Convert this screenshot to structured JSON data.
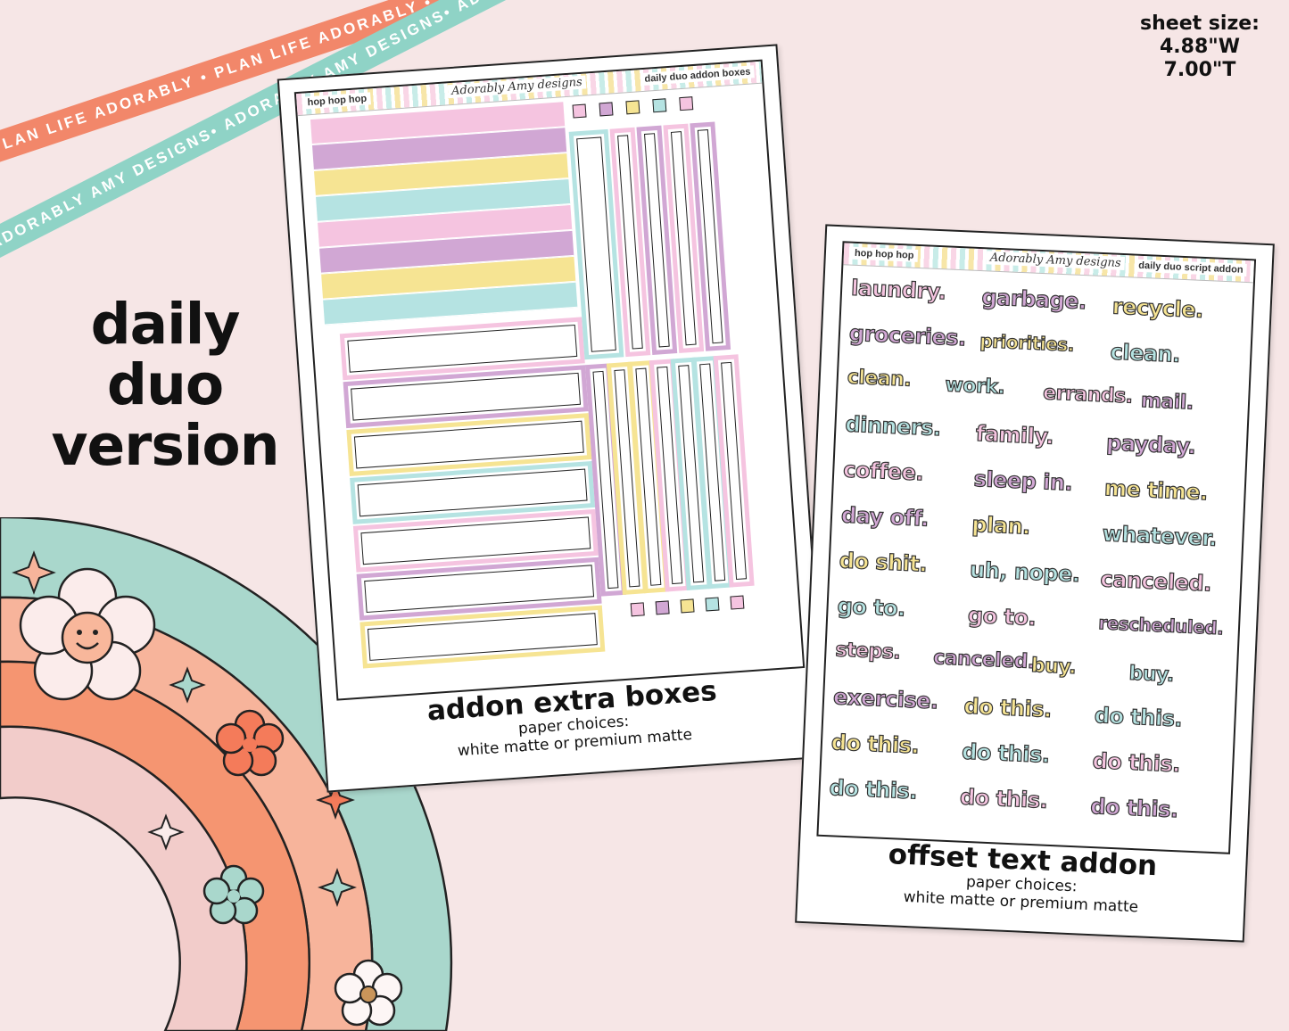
{
  "ribbons": {
    "top_text": "PLAN LIFE ADORABLY • PLAN LIFE ADORABLY • PLAN LIFE ADORABLY •",
    "bottom_text": "ADORABLY AMY DESIGNS• ADORABLY AMY DESIGNS• ADORABLY AMY DESIGNS•",
    "top_color": "#f2876a",
    "bottom_color": "#8fd3c6"
  },
  "title": {
    "line1": "daily",
    "line2": "duo",
    "line3": "version"
  },
  "sheet_size": {
    "label": "sheet size:",
    "width": "4.88\"W",
    "height": "7.00\"T"
  },
  "sheet_left": {
    "header_left": "hop hop hop",
    "brand": "Adorably Amy designs",
    "header_right": "daily duo addon boxes",
    "caption": "addon extra boxes",
    "paper_label": "paper choices:",
    "paper_options": "white matte or premium matte"
  },
  "sheet_right": {
    "header_left": "hop hop hop",
    "brand": "Adorably Amy designs",
    "header_right": "daily duo script addon",
    "caption": "offset text addon",
    "paper_label": "paper choices:",
    "paper_options": "white matte or premium matte",
    "words": [
      [
        "laundry.",
        "garbage.",
        "recycle."
      ],
      [
        "groceries.",
        "priorities.",
        "clean."
      ],
      [
        "clean.",
        "work.",
        "errands.",
        "mail."
      ],
      [
        "dinners.",
        "family.",
        "payday."
      ],
      [
        "coffee.",
        "sleep in.",
        "me time."
      ],
      [
        "day off.",
        "plan.",
        "whatever."
      ],
      [
        "do shit.",
        "uh, nope.",
        "canceled."
      ],
      [
        "go to.",
        "go to.",
        "rescheduled."
      ],
      [
        "steps.",
        "canceled.",
        "buy.",
        "buy."
      ],
      [
        "exercise.",
        "do this.",
        "do this."
      ],
      [
        "do this.",
        "do this.",
        "do this."
      ],
      [
        "do this.",
        "do this.",
        "do this."
      ]
    ]
  },
  "palette": {
    "pink": "#f5c4e0",
    "purple": "#d1a7d4",
    "yellow": "#f6e493",
    "mint": "#b5e3e2",
    "rainbow_mint": "#a9d7cc",
    "rainbow_peach": "#f7b49b",
    "rainbow_orange": "#f59571",
    "rainbow_pink": "#f2ccca"
  }
}
